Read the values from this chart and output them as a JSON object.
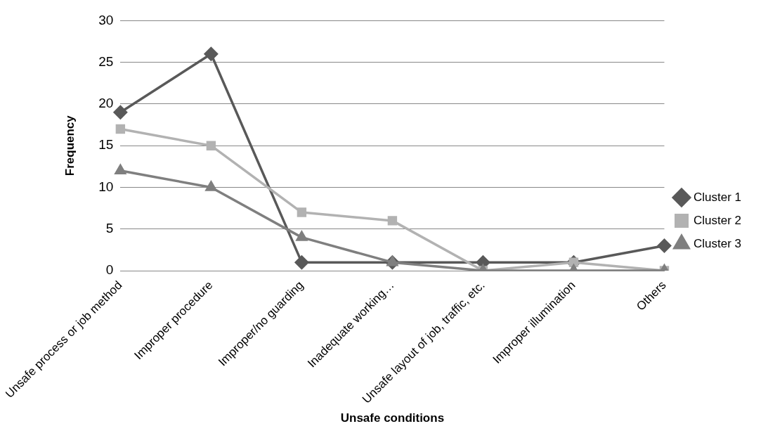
{
  "chart_data": {
    "type": "line",
    "xlabel": "Unsafe conditions",
    "ylabel": "Frequency",
    "categories": [
      "Unsafe process or job method",
      "Improper procedure",
      "Improper/no guarding",
      "Inadequate working…",
      "Unsafe layout of job, traffic, etc.",
      "Improper illumination",
      "Others"
    ],
    "series": [
      {
        "name": "Cluster 1",
        "color": "#595959",
        "marker": "diamond",
        "values": [
          19,
          26,
          1,
          1,
          1,
          1,
          3
        ]
      },
      {
        "name": "Cluster 2",
        "color": "#b2b2b2",
        "marker": "square",
        "values": [
          17,
          15,
          7,
          6,
          0,
          1,
          0
        ]
      },
      {
        "name": "Cluster 3",
        "color": "#7f7f7f",
        "marker": "triangle",
        "values": [
          12,
          10,
          4,
          1,
          0,
          0,
          0
        ]
      }
    ],
    "ylim": [
      0,
      30
    ],
    "yticks": [
      0,
      5,
      10,
      15,
      20,
      25,
      30
    ],
    "grid": "y",
    "legend": "right",
    "line_style": "solid"
  }
}
